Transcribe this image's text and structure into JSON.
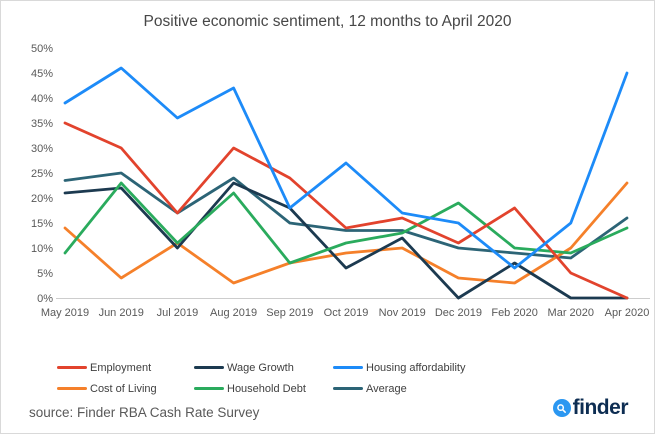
{
  "chart_data": {
    "type": "line",
    "title": "Positive economic sentiment, 12 months to April 2020",
    "categories": [
      "May 2019",
      "Jun 2019",
      "Jul 2019",
      "Aug 2019",
      "Sep 2019",
      "Oct 2019",
      "Nov 2019",
      "Dec 2019",
      "Feb 2020",
      "Mar 2020",
      "Apr 2020"
    ],
    "series": [
      {
        "name": "Employment",
        "color": "#e2432d",
        "values": [
          35,
          30,
          17,
          30,
          24,
          14,
          16,
          11,
          18,
          5,
          0
        ]
      },
      {
        "name": "Wage Growth",
        "color": "#1c3a50",
        "values": [
          21,
          22,
          10,
          23,
          18,
          6,
          12,
          0,
          7,
          0,
          0
        ]
      },
      {
        "name": "Housing affordability",
        "color": "#1d8bf8",
        "values": [
          39,
          46,
          36,
          42,
          18,
          27,
          17,
          15,
          6,
          15,
          45
        ]
      },
      {
        "name": "Cost of Living",
        "color": "#f5802a",
        "values": [
          14,
          4,
          11,
          3,
          7,
          9,
          10,
          4,
          3,
          10,
          23
        ]
      },
      {
        "name": "Household Debt",
        "color": "#2aab5d",
        "values": [
          9,
          23,
          11,
          21,
          7,
          11,
          13,
          19,
          10,
          9,
          14
        ]
      },
      {
        "name": "Average",
        "color": "#2c6476",
        "values": [
          23.5,
          25,
          17,
          24,
          15,
          13.5,
          13.5,
          10,
          9,
          8,
          16
        ]
      }
    ],
    "xlabel": "",
    "ylabel": "",
    "ylim": [
      0,
      50
    ],
    "ytick_step": 5,
    "ytick_suffix": "%",
    "grid": false,
    "legend_position": "bottom",
    "legend_order": [
      "Employment",
      "Wage Growth",
      "Housing affordability",
      "Cost of Living",
      "Household Debt",
      "Average"
    ],
    "draw_order": [
      "Average",
      "Cost of Living",
      "Wage Growth",
      "Household Debt",
      "Employment",
      "Housing affordability"
    ]
  },
  "footer": {
    "source": "source: Finder RBA Cash Rate Survey",
    "logo_text": "finder",
    "logo_icon": "magnifier-icon",
    "logo_circle_color": "#2b97f1",
    "logo_text_color": "#0d2d52"
  }
}
